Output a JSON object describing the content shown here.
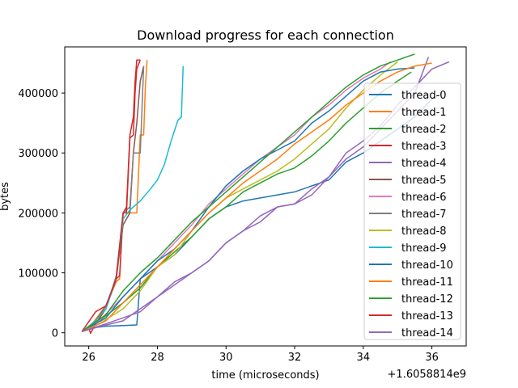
{
  "chart_data": {
    "type": "line",
    "title": "Download progress for each connection",
    "xlabel": "time (microseconds)",
    "ylabel": "bytes",
    "x_offset_label": "+1.6058814e9",
    "xlim": [
      25.3,
      37.0
    ],
    "ylim": [
      -22000,
      477000
    ],
    "x_ticks": [
      26,
      28,
      30,
      32,
      34,
      36
    ],
    "x_tick_labels": [
      "26",
      "28",
      "30",
      "32",
      "34",
      "36"
    ],
    "y_ticks": [
      0,
      100000,
      200000,
      300000,
      400000
    ],
    "y_tick_labels": [
      "0",
      "100000",
      "200000",
      "300000",
      "400000"
    ],
    "grid": false,
    "legend_position": "right",
    "series": [
      {
        "name": "thread-0",
        "color": "#1f77b4",
        "x": [
          25.8,
          26.1,
          26.5,
          27.0,
          27.4,
          27.5,
          28.0,
          28.5,
          29.0,
          29.5,
          30.0,
          30.5,
          31.0,
          31.5,
          32.0,
          32.5,
          33.0,
          33.5,
          34.0,
          34.5,
          35.0,
          35.5,
          36.0,
          36.3
        ],
        "y": [
          2000,
          8000,
          11000,
          12000,
          13000,
          90000,
          110000,
          130000,
          160000,
          190000,
          210000,
          220000,
          225000,
          230000,
          235000,
          245000,
          255000,
          285000,
          300000,
          320000,
          340000,
          360000,
          390000,
          400000
        ]
      },
      {
        "name": "thread-1",
        "color": "#ff7f0e",
        "x": [
          25.8,
          26.1,
          26.3,
          26.5,
          26.8,
          26.9,
          27.0,
          27.1,
          27.2,
          27.3,
          27.4,
          27.5,
          27.6,
          27.65,
          27.7
        ],
        "y": [
          2000,
          15000,
          30000,
          45000,
          85000,
          90000,
          200000,
          200000,
          200000,
          200000,
          200000,
          330000,
          330000,
          410000,
          455000
        ]
      },
      {
        "name": "thread-2",
        "color": "#2ca02c",
        "x": [
          25.8,
          26.3,
          27.0,
          27.5,
          28.0,
          28.5,
          29.0,
          29.5,
          30.0,
          30.5,
          31.0,
          31.5,
          32.0,
          32.5,
          33.0,
          33.5,
          34.0,
          34.5,
          35.0,
          35.4
        ],
        "y": [
          2000,
          20000,
          50000,
          75000,
          110000,
          135000,
          160000,
          190000,
          210000,
          235000,
          250000,
          265000,
          275000,
          295000,
          320000,
          350000,
          375000,
          400000,
          420000,
          435000
        ]
      },
      {
        "name": "thread-3",
        "color": "#d62728",
        "x": [
          25.8,
          26.0,
          26.05,
          26.2,
          26.5,
          26.8,
          26.9,
          27.0,
          27.1,
          27.2,
          27.3,
          27.35,
          27.4,
          27.5
        ],
        "y": [
          2000,
          8000,
          -1000,
          15000,
          40000,
          90000,
          95000,
          200000,
          210000,
          330000,
          360000,
          420000,
          455000,
          455000
        ]
      },
      {
        "name": "thread-4",
        "color": "#9467bd",
        "x": [
          25.8,
          26.3,
          27.0,
          27.5,
          28.0,
          28.5,
          29.0,
          29.5,
          30.0,
          30.5,
          31.0,
          31.5,
          32.0,
          32.5,
          33.0,
          33.5,
          34.0,
          34.5,
          35.0,
          35.5,
          35.9
        ],
        "y": [
          2000,
          10000,
          20000,
          40000,
          60000,
          80000,
          100000,
          120000,
          150000,
          170000,
          195000,
          210000,
          215000,
          240000,
          260000,
          290000,
          310000,
          340000,
          370000,
          400000,
          460000
        ]
      },
      {
        "name": "thread-5",
        "color": "#8c564b",
        "x": [
          25.8,
          26.2,
          26.5,
          26.8,
          27.0,
          27.2,
          27.3,
          27.4,
          27.5,
          27.6
        ],
        "y": [
          2000,
          20000,
          45000,
          90000,
          180000,
          200000,
          300000,
          350000,
          420000,
          445000
        ]
      },
      {
        "name": "thread-6",
        "color": "#e377c2",
        "x": [
          25.8,
          26.3,
          27.0,
          27.5,
          28.0,
          28.5,
          29.0,
          29.5,
          30.0,
          30.5,
          31.0,
          31.5,
          32.0,
          32.5,
          33.0,
          33.5,
          34.0,
          34.5,
          34.8
        ],
        "y": [
          2000,
          20000,
          60000,
          90000,
          120000,
          150000,
          180000,
          215000,
          240000,
          265000,
          290000,
          310000,
          330000,
          360000,
          380000,
          405000,
          425000,
          440000,
          452000
        ]
      },
      {
        "name": "thread-7",
        "color": "#7f7f7f",
        "x": [
          25.8,
          26.2,
          26.5,
          26.8,
          27.0,
          27.2,
          27.3,
          27.4,
          27.5,
          27.6
        ],
        "y": [
          2000,
          20000,
          40000,
          95000,
          200000,
          210000,
          300000,
          300000,
          300000,
          445000
        ]
      },
      {
        "name": "thread-8",
        "color": "#bcbd22",
        "x": [
          25.8,
          26.3,
          27.0,
          27.5,
          28.0,
          28.5,
          29.0,
          29.5,
          30.0,
          30.5,
          31.0,
          31.5,
          32.0,
          32.5,
          33.0,
          33.5,
          34.0,
          34.5,
          35.0
        ],
        "y": [
          2000,
          15000,
          40000,
          70000,
          110000,
          130000,
          170000,
          200000,
          225000,
          240000,
          255000,
          270000,
          290000,
          315000,
          340000,
          375000,
          405000,
          430000,
          452000
        ]
      },
      {
        "name": "thread-9",
        "color": "#17becf",
        "x": [
          25.8,
          26.2,
          26.5,
          26.8,
          27.0,
          27.2,
          27.5,
          27.8,
          28.0,
          28.2,
          28.4,
          28.6,
          28.7,
          28.75
        ],
        "y": [
          2000,
          20000,
          40000,
          90000,
          190000,
          205000,
          220000,
          240000,
          255000,
          280000,
          320000,
          355000,
          360000,
          445000
        ]
      },
      {
        "name": "thread-10",
        "color": "#1f77b4",
        "x": [
          25.8,
          26.5,
          27.0,
          27.5,
          28.0,
          28.5,
          29.0,
          29.5,
          30.0,
          30.5,
          31.0,
          31.5,
          32.0,
          32.5,
          33.0,
          33.5,
          34.0,
          34.5,
          35.0,
          35.5
        ],
        "y": [
          2000,
          25000,
          60000,
          90000,
          120000,
          140000,
          170000,
          210000,
          245000,
          270000,
          290000,
          305000,
          320000,
          350000,
          370000,
          395000,
          420000,
          435000,
          440000,
          442000
        ]
      },
      {
        "name": "thread-11",
        "color": "#ff7f0e",
        "x": [
          25.8,
          26.5,
          27.0,
          27.5,
          28.0,
          28.5,
          29.0,
          29.5,
          30.0,
          30.5,
          31.0,
          31.5,
          32.0,
          32.5,
          33.0,
          33.5,
          34.0,
          34.5,
          35.0,
          35.5,
          36.0
        ],
        "y": [
          2000,
          20000,
          50000,
          80000,
          110000,
          140000,
          170000,
          200000,
          225000,
          250000,
          270000,
          290000,
          315000,
          335000,
          355000,
          380000,
          400000,
          420000,
          435000,
          445000,
          450000
        ]
      },
      {
        "name": "thread-12",
        "color": "#2ca02c",
        "x": [
          25.8,
          26.5,
          27.0,
          27.5,
          28.0,
          28.5,
          29.0,
          29.5,
          30.0,
          30.5,
          31.0,
          31.5,
          32.0,
          32.5,
          33.0,
          33.5,
          34.0,
          34.5,
          35.0,
          35.5
        ],
        "y": [
          2000,
          30000,
          70000,
          100000,
          125000,
          155000,
          185000,
          210000,
          235000,
          260000,
          285000,
          310000,
          335000,
          360000,
          385000,
          410000,
          430000,
          445000,
          455000,
          465000
        ]
      },
      {
        "name": "thread-13",
        "color": "#d62728",
        "x": [
          25.8,
          26.2,
          26.5,
          26.8,
          27.0,
          27.1,
          27.2,
          27.3,
          27.35,
          27.4,
          27.5
        ],
        "y": [
          2000,
          35000,
          45000,
          90000,
          200000,
          200000,
          325000,
          330000,
          400000,
          440000,
          455000
        ]
      },
      {
        "name": "thread-14",
        "color": "#9467bd",
        "x": [
          25.8,
          26.5,
          27.0,
          27.5,
          28.0,
          28.5,
          29.0,
          29.5,
          30.0,
          30.5,
          31.0,
          31.5,
          32.0,
          32.5,
          33.0,
          33.5,
          34.0,
          34.5,
          35.0,
          35.5,
          36.0,
          36.5
        ],
        "y": [
          2000,
          15000,
          25000,
          35000,
          60000,
          85000,
          100000,
          120000,
          150000,
          170000,
          185000,
          210000,
          215000,
          230000,
          260000,
          300000,
          320000,
          345000,
          380000,
          410000,
          440000,
          452000
        ]
      }
    ]
  }
}
